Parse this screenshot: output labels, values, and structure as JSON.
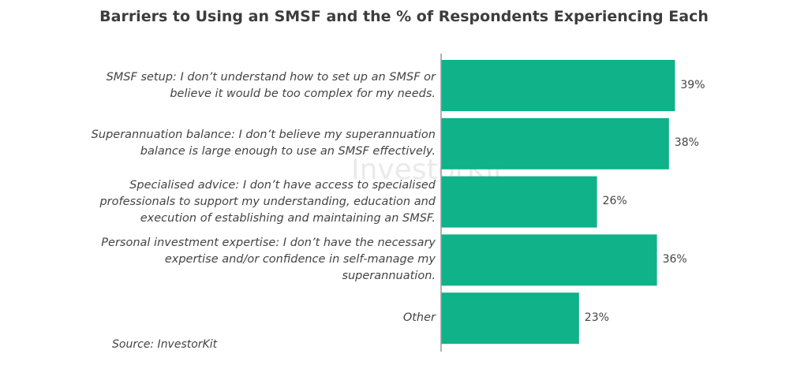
{
  "chart_data": {
    "type": "bar",
    "orientation": "horizontal",
    "title": "Barriers to Using an SMSF and the % of Respondents Experiencing Each",
    "categories": [
      "SMSF setup: I don’t understand how to set up an SMSF or believe it would be too complex for my needs.",
      "Superannuation balance: I don’t believe my superannuation balance is large enough to use an SMSF effectively.",
      "Specialised advice: I don’t have access to specialised professionals to support my understanding, education and execution of establishing and maintaining an SMSF.",
      "Personal investment expertise: I don’t have the necessary expertise and/or confidence in self-manage my superannuation.",
      "Other"
    ],
    "values": [
      39,
      38,
      26,
      36,
      23
    ],
    "value_labels": [
      "39%",
      "38%",
      "26%",
      "36%",
      "23%"
    ],
    "xlim": [
      0,
      40
    ],
    "grid": false,
    "bar_color": "#0fb289",
    "source": "Source: InvestorKit",
    "watermark": "InvestorKit"
  }
}
